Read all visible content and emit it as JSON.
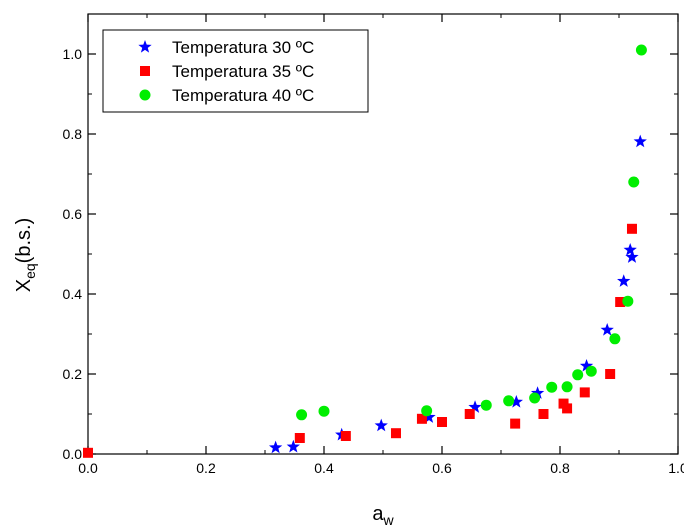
{
  "chart_data": {
    "type": "scatter",
    "xlabel": "a",
    "xlabel_sub": "w",
    "ylabel": "X",
    "ylabel_sub": "eq",
    "ylabel_suffix": "(b.s.)",
    "xlim": [
      0.0,
      1.0
    ],
    "ylim": [
      0.0,
      1.1
    ],
    "x_ticks": [
      0.0,
      0.2,
      0.4,
      0.6,
      0.8,
      1.0
    ],
    "x_tick_labels": [
      "0.0",
      "0.2",
      "0.4",
      "0.6",
      "0.8",
      "1.0"
    ],
    "y_ticks": [
      0.0,
      0.2,
      0.4,
      0.6,
      0.8,
      1.0
    ],
    "y_tick_labels": [
      "0.0",
      "0.2",
      "0.4",
      "0.6",
      "0.8",
      "1.0"
    ],
    "grid": false,
    "legend_position": "top-left",
    "series": [
      {
        "name": "Temperatura 30 ºC",
        "marker": "star",
        "color": "#0000ff",
        "points": [
          [
            0.318,
            0.016
          ],
          [
            0.348,
            0.018
          ],
          [
            0.43,
            0.048
          ],
          [
            0.497,
            0.071
          ],
          [
            0.578,
            0.092
          ],
          [
            0.656,
            0.117
          ],
          [
            0.726,
            0.13
          ],
          [
            0.762,
            0.152
          ],
          [
            0.845,
            0.22
          ],
          [
            0.88,
            0.31
          ],
          [
            0.908,
            0.432
          ],
          [
            0.919,
            0.51
          ],
          [
            0.922,
            0.492
          ],
          [
            0.936,
            0.781
          ]
        ]
      },
      {
        "name": "Temperatura 35 ºC",
        "marker": "square",
        "color": "#ff0000",
        "points": [
          [
            0.0,
            0.003
          ],
          [
            0.359,
            0.04
          ],
          [
            0.437,
            0.045
          ],
          [
            0.522,
            0.052
          ],
          [
            0.566,
            0.088
          ],
          [
            0.6,
            0.08
          ],
          [
            0.647,
            0.1
          ],
          [
            0.724,
            0.076
          ],
          [
            0.772,
            0.1
          ],
          [
            0.806,
            0.126
          ],
          [
            0.812,
            0.114
          ],
          [
            0.842,
            0.154
          ],
          [
            0.885,
            0.2
          ],
          [
            0.902,
            0.38
          ],
          [
            0.922,
            0.563
          ]
        ]
      },
      {
        "name": "Temperatura 40 ºC",
        "marker": "circle",
        "color": "#00ee00",
        "points": [
          [
            0.362,
            0.098
          ],
          [
            0.4,
            0.107
          ],
          [
            0.574,
            0.108
          ],
          [
            0.675,
            0.122
          ],
          [
            0.713,
            0.133
          ],
          [
            0.757,
            0.14
          ],
          [
            0.786,
            0.167
          ],
          [
            0.812,
            0.168
          ],
          [
            0.83,
            0.198
          ],
          [
            0.853,
            0.207
          ],
          [
            0.893,
            0.288
          ],
          [
            0.915,
            0.382
          ],
          [
            0.925,
            0.68
          ],
          [
            0.938,
            1.01
          ]
        ]
      }
    ]
  }
}
